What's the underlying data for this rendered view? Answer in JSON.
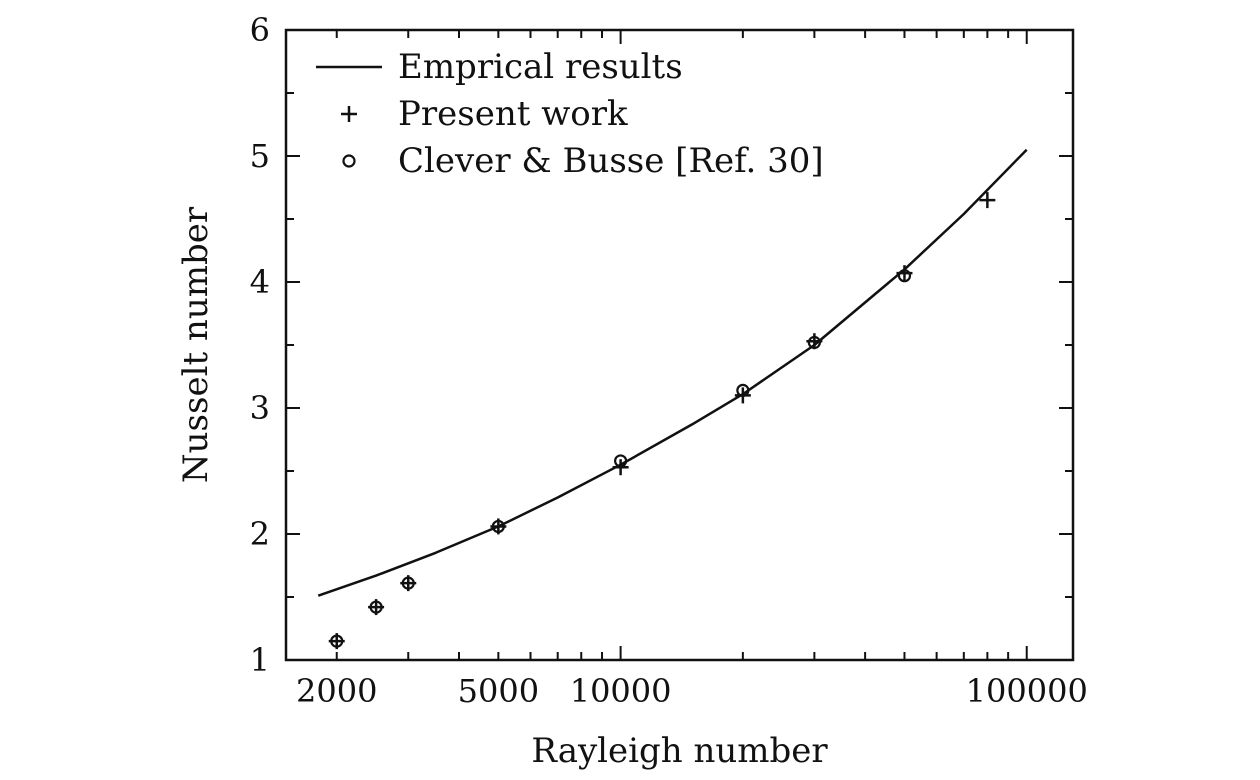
{
  "chart_data": {
    "type": "scatter",
    "xscale": "log",
    "xlabel": "Rayleigh number",
    "ylabel": "Nusselt number",
    "xlim": [
      1500,
      130000
    ],
    "ylim": [
      1,
      6
    ],
    "xticks": [
      {
        "value": 2000,
        "label": "2000"
      },
      {
        "value": 5000,
        "label": "5000"
      },
      {
        "value": 10000,
        "label": "10000"
      },
      {
        "value": 100000,
        "label": "100000"
      }
    ],
    "yticks": [
      {
        "value": 1,
        "label": "1"
      },
      {
        "value": 2,
        "label": "2"
      },
      {
        "value": 3,
        "label": "3"
      },
      {
        "value": 4,
        "label": "4"
      },
      {
        "value": 5,
        "label": "5"
      },
      {
        "value": 6,
        "label": "6"
      }
    ],
    "grid": false,
    "legend_position": "top-left",
    "series": [
      {
        "name": "Emprical results",
        "kind": "line",
        "x": [
          1800,
          2500,
          3500,
          5000,
          7000,
          10000,
          15000,
          20000,
          30000,
          50000,
          70000,
          100000
        ],
        "y": [
          1.51,
          1.67,
          1.85,
          2.06,
          2.29,
          2.55,
          2.87,
          3.11,
          3.5,
          4.1,
          4.54,
          5.05
        ]
      },
      {
        "name": "Present work",
        "kind": "plus",
        "x": [
          2000,
          2500,
          3000,
          5000,
          10000,
          20000,
          30000,
          50000,
          80000
        ],
        "y": [
          1.15,
          1.42,
          1.61,
          2.06,
          2.53,
          3.1,
          3.53,
          4.07,
          4.65
        ]
      },
      {
        "name": "Clever & Busse [Ref. 30]",
        "kind": "circle",
        "x": [
          2000,
          2500,
          3000,
          5000,
          10000,
          20000,
          30000,
          50000
        ],
        "y": [
          1.15,
          1.42,
          1.61,
          2.06,
          2.58,
          3.14,
          3.52,
          4.05
        ]
      }
    ]
  }
}
